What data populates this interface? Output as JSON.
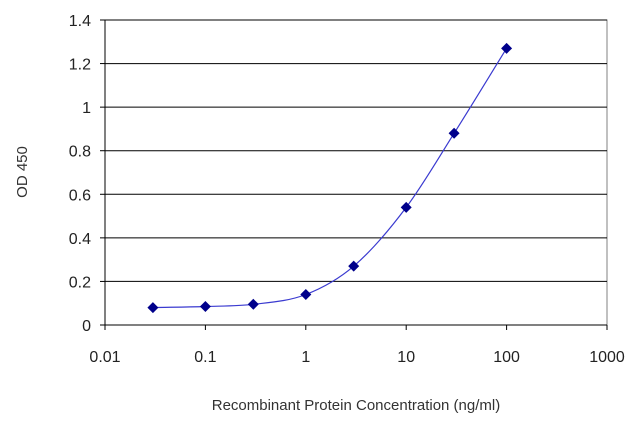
{
  "chart_data": {
    "type": "scatter",
    "title": "",
    "xlabel": "Recombinant Protein Concentration (ng/ml)",
    "ylabel": "OD 450",
    "x_scale": "log",
    "xlim": [
      0.01,
      1000
    ],
    "ylim": [
      0,
      1.4
    ],
    "x_ticks": [
      "0.01",
      "0.1",
      "1",
      "10",
      "100",
      "1000"
    ],
    "y_ticks": [
      "0",
      "0.2",
      "0.4",
      "0.6",
      "0.8",
      "1",
      "1.2",
      "1.4"
    ],
    "grid": "horizontal",
    "legend": "none",
    "series": [
      {
        "x": [
          0.03,
          0.1,
          0.3,
          1,
          3,
          10,
          30,
          100
        ],
        "y": [
          0.08,
          0.085,
          0.095,
          0.14,
          0.27,
          0.54,
          0.88,
          1.27
        ],
        "marker": "diamond",
        "fit_line": true
      }
    ],
    "colors": {
      "series": "#00008b",
      "line": "#3a3ad0",
      "grid": "#000000"
    }
  }
}
